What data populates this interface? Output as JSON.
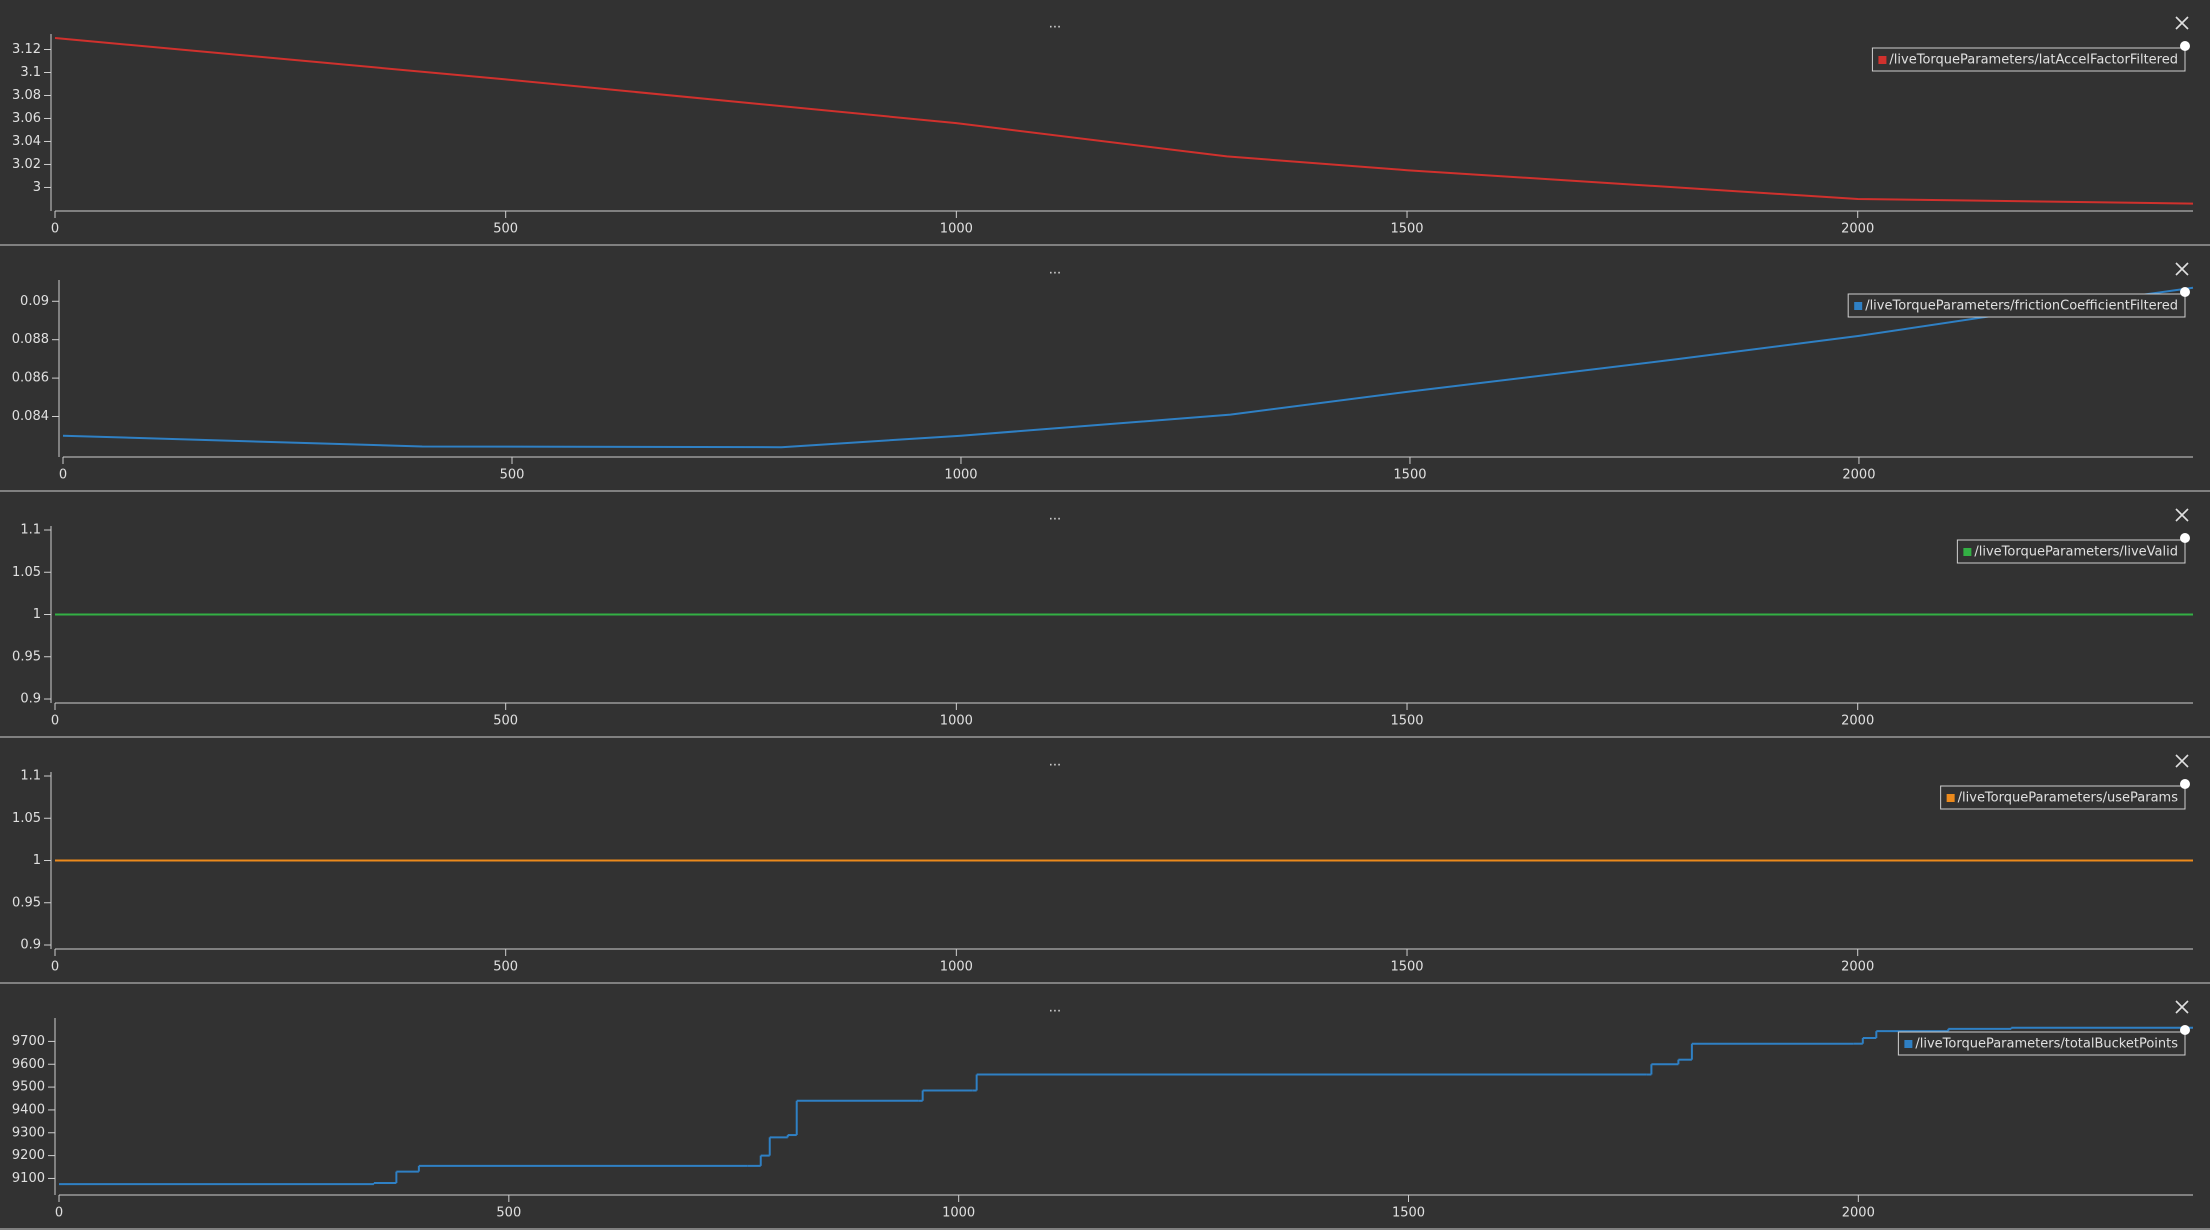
{
  "chart_data": [
    {
      "type": "line",
      "title": "...",
      "legend": "upper right",
      "xlim": [
        0,
        2372
      ],
      "xticks": [
        0,
        500,
        1000,
        1500,
        2000
      ],
      "ylim": [
        2.983,
        3.13
      ],
      "yticks": [
        3,
        3.02,
        3.04,
        3.06,
        3.08,
        3.1,
        3.12
      ],
      "x": [
        0,
        500,
        1000,
        1300,
        1500,
        2000,
        2372
      ],
      "series": [
        {
          "name": "/liveTorqueParameters/latAccelFactorFiltered",
          "color": "#d0312d",
          "values": [
            3.13,
            3.094,
            3.056,
            3.027,
            3.015,
            2.99,
            2.986
          ]
        }
      ]
    },
    {
      "type": "line",
      "title": "...",
      "legend": "upper right",
      "xlim": [
        0,
        2372
      ],
      "xticks": [
        0,
        500,
        1000,
        1500,
        2000
      ],
      "ylim": [
        0.0821,
        0.0909
      ],
      "yticks": [
        0.084,
        0.086,
        0.088,
        0.09
      ],
      "x": [
        0,
        400,
        800,
        1000,
        1300,
        1500,
        1800,
        2000,
        2200,
        2372
      ],
      "series": [
        {
          "name": "/liveTorqueParameters/frictionCoefficientFiltered",
          "color": "#2f80c4",
          "values": [
            0.083,
            0.08244,
            0.0824,
            0.083,
            0.0841,
            0.0853,
            0.087,
            0.0882,
            0.0896,
            0.0907
          ]
        }
      ]
    },
    {
      "type": "line",
      "title": "...",
      "legend": "upper right",
      "xlim": [
        0,
        2372
      ],
      "xticks": [
        0,
        500,
        1000,
        1500,
        2000
      ],
      "ylim": [
        0.9,
        1.1
      ],
      "yticks": [
        0.9,
        0.95,
        1,
        1.05,
        1.1
      ],
      "x": [
        0,
        2372
      ],
      "series": [
        {
          "name": "/liveTorqueParameters/liveValid",
          "color": "#33b044",
          "values": [
            1,
            1
          ]
        }
      ]
    },
    {
      "type": "line",
      "title": "...",
      "legend": "upper right",
      "xlim": [
        0,
        2372
      ],
      "xticks": [
        0,
        500,
        1000,
        1500,
        2000
      ],
      "ylim": [
        0.9,
        1.1
      ],
      "yticks": [
        0.9,
        0.95,
        1,
        1.05,
        1.1
      ],
      "x": [
        0,
        2372
      ],
      "series": [
        {
          "name": "/liveTorqueParameters/useParams",
          "color": "#ec8a1c",
          "values": [
            1,
            1
          ]
        }
      ]
    },
    {
      "type": "step",
      "title": "...",
      "legend": "upper right",
      "xlim": [
        0,
        2372
      ],
      "xticks": [
        0,
        500,
        1000,
        1500,
        2000
      ],
      "ylim": [
        9045,
        9785
      ],
      "yticks": [
        9100,
        9200,
        9300,
        9400,
        9500,
        9600,
        9700
      ],
      "x": [
        0,
        350,
        375,
        400,
        765,
        780,
        790,
        810,
        820,
        955,
        960,
        1015,
        1020,
        1765,
        1770,
        1800,
        1815,
        1995,
        2005,
        2020,
        2100,
        2170,
        2372
      ],
      "series": [
        {
          "name": "/liveTorqueParameters/totalBucketPoints",
          "color": "#2f80c4",
          "values": [
            9075,
            9080,
            9130,
            9155,
            9155,
            9200,
            9280,
            9290,
            9440,
            9440,
            9485,
            9485,
            9555,
            9555,
            9600,
            9620,
            9690,
            9690,
            9715,
            9745,
            9755,
            9760,
            9760
          ]
        }
      ]
    }
  ]
}
